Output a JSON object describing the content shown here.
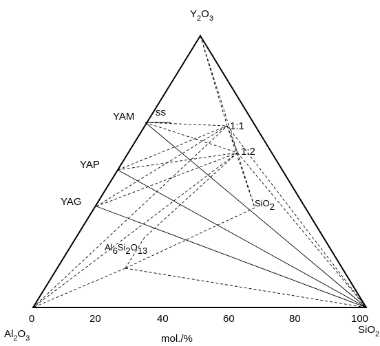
{
  "diagram": {
    "vertices": {
      "top": {
        "formula": "Y",
        "sub1": "2",
        "mid": "O",
        "sub2": "3"
      },
      "left": {
        "formula": "Al",
        "sub1": "2",
        "mid": "O",
        "sub2": "3"
      },
      "right": {
        "formula": "SiO",
        "sub1": "2"
      }
    },
    "phases": {
      "yam": "YAM",
      "ss": "ss",
      "yap": "YAP",
      "yag": "YAG",
      "ratio_1_1": "1:1",
      "ratio_1_2": "1:2",
      "sio2": {
        "base": "SiO",
        "sub": "2"
      },
      "mullite": {
        "a": "Al",
        "s1": "6",
        "b": "Si",
        "s2": "2",
        "c": "O",
        "s3": "13"
      }
    },
    "axis": {
      "ticks": [
        "0",
        "20",
        "40",
        "60",
        "80",
        "100"
      ],
      "label": "mol./%"
    },
    "colors": {
      "line": "#000000",
      "background": "#ffffff"
    }
  }
}
